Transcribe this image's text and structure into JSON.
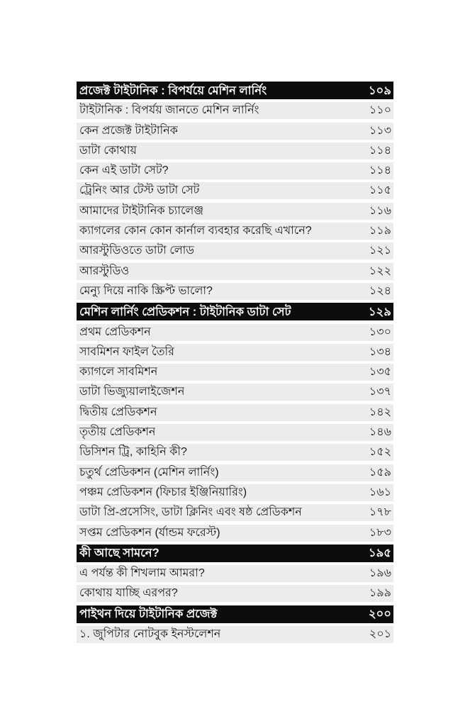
{
  "colors": {
    "page_bg": "#ffffff",
    "header_bg": "#0d0d0d",
    "header_text": "#ffffff",
    "row_bg": "#ececec",
    "row_text": "#1a1a1a"
  },
  "toc": {
    "sections": [
      {
        "title": "প্রজেক্ট টাইটানিক : বিপর্যয়ে মেশিন লার্নিং",
        "page": "১০৯",
        "items": [
          {
            "label": "টাইটানিক : বিপর্যয় জানতে মেশিন লার্নিং",
            "page": "১১০"
          },
          {
            "label": "কেন প্রজেক্ট টাইটানিক",
            "page": "১১৩"
          },
          {
            "label": "ডাটা কোথায়",
            "page": "১১৪"
          },
          {
            "label": "কেন এই ডাটা সেট?",
            "page": "১১৪"
          },
          {
            "label": "ট্রেনিং আর টেস্ট ডাটা সেট",
            "page": "১১৫"
          },
          {
            "label": "আমাদের টাইটানিক চ্যালেঞ্জ",
            "page": "১১৬"
          },
          {
            "label": "ক্যাগলের কোন কোন কার্নাল ব্যবহার করেছি এখানে?",
            "page": "১১৯"
          },
          {
            "label": "আরস্টুডিওতে ডাটা লোড",
            "page": "১২১"
          },
          {
            "label": "আরস্টুডিও",
            "page": "১২২"
          },
          {
            "label": "মেন্যু দিয়ে নাকি স্ক্রিপ্ট ভালো?",
            "page": "১২৪"
          }
        ]
      },
      {
        "title": "মেশিন লার্নিং প্রেডিকশন : টাইটানিক ডাটা সেট",
        "page": "১২৯",
        "items": [
          {
            "label": "প্রথম প্রেডিকশন",
            "page": "১৩০"
          },
          {
            "label": "সাবমিশন ফাইল তৈরি",
            "page": "১৩৪"
          },
          {
            "label": "ক্যাগলে সাবমিশন",
            "page": "১৩৫"
          },
          {
            "label": "ডাটা ভিজ্যুয়ালাইজেশন",
            "page": "১৩৭"
          },
          {
            "label": "দ্বিতীয় প্রেডিকশন",
            "page": "১৪২"
          },
          {
            "label": "তৃতীয় প্রেডিকশন",
            "page": "১৪৬"
          },
          {
            "label": "ডিসিশন ট্রি, কাহিনি কী?",
            "page": "১৫২"
          },
          {
            "label": "চতুর্থ প্রেডিকশন (মেশিন লার্নিং)",
            "page": "১৫৯"
          },
          {
            "label": "পঞ্চম প্রেডিকশন (ফিচার ইঞ্জিনিয়ারিং)",
            "page": "১৬১"
          },
          {
            "label": "ডাটা প্রি-প্রসেসিং, ডাটা ক্লিনিং এবং ষষ্ঠ প্রেডিকশন",
            "page": "১৭৮"
          },
          {
            "label": "সপ্তম প্রেডিকশন (র্যান্ডম ফরেস্ট)",
            "page": "১৮৩"
          }
        ]
      },
      {
        "title": "কী আছে সামনে?",
        "page": "১৯৫",
        "items": [
          {
            "label": "এ পর্যন্ত কী শিখলাম আমরা?",
            "page": "১৯৬"
          },
          {
            "label": "কোথায় যাচ্ছি এরপর?",
            "page": "১৯৯"
          }
        ]
      },
      {
        "title": "পাইথন দিয়ে টাইটানিক প্রজেক্ট",
        "page": "২০০",
        "items": [
          {
            "label": "১. জুপিটার নোটবুক ইনস্টলেশন",
            "page": "২০১"
          }
        ]
      }
    ]
  }
}
